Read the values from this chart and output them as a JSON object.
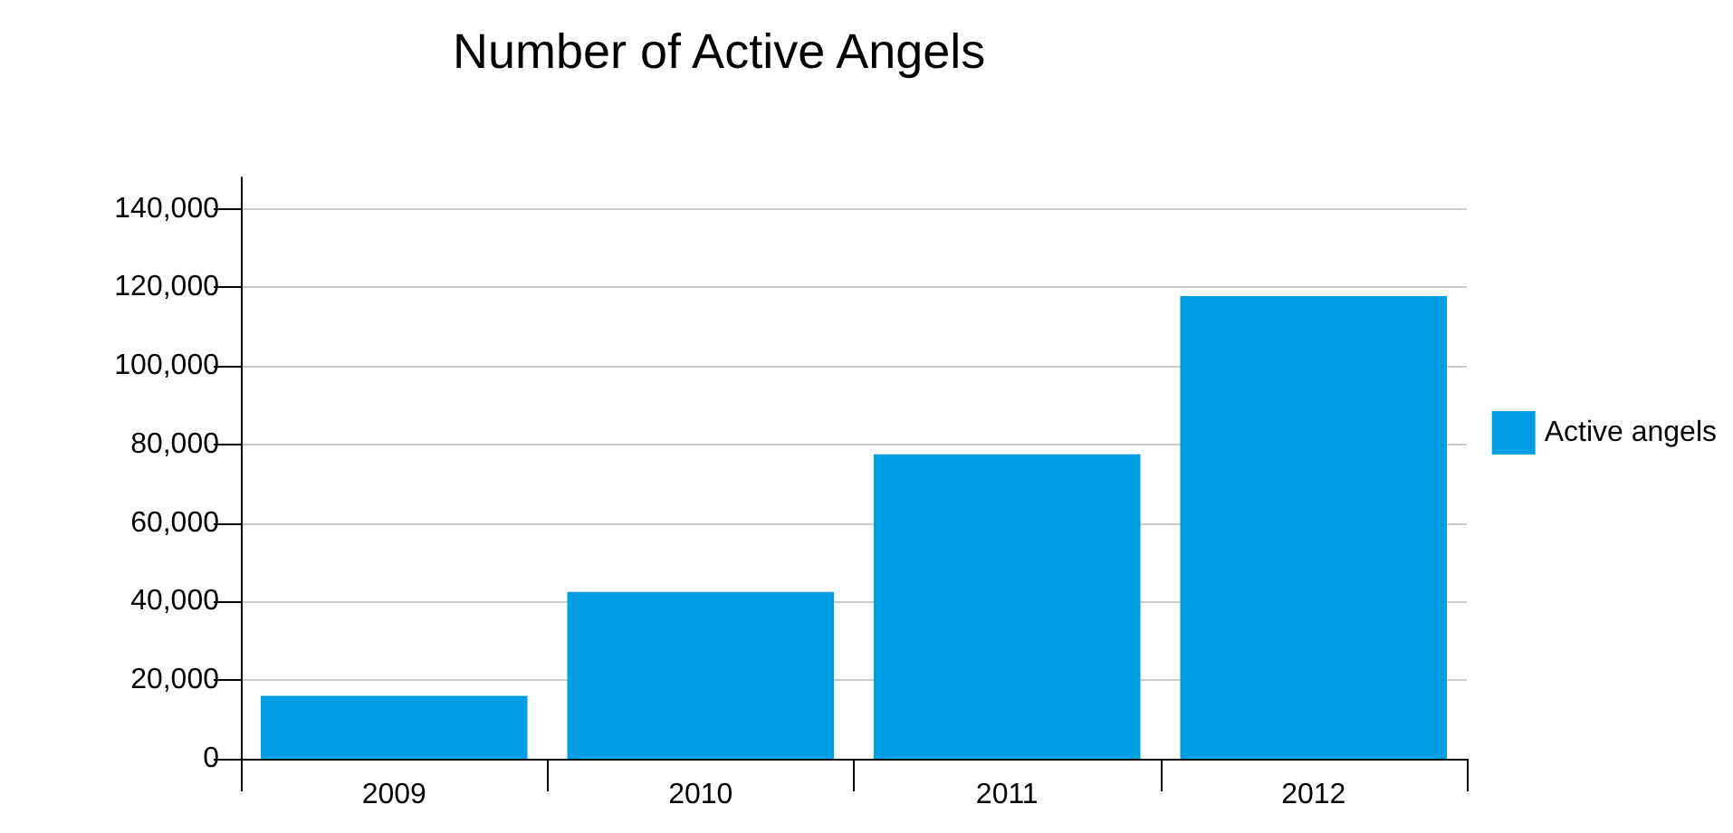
{
  "chart_data": {
    "type": "bar",
    "title": "Number of Active Angels",
    "categories": [
      "2009",
      "2010",
      "2011",
      "2012"
    ],
    "series": [
      {
        "name": "Active angels",
        "color": "#009fe3",
        "values": [
          16000,
          42500,
          77500,
          117800
        ]
      }
    ],
    "ylim": [
      0,
      148000
    ],
    "yticks": [
      0,
      {
        "value": 20000,
        "label": "20,000"
      },
      {
        "value": 40000,
        "label": "40,000"
      },
      {
        "value": 60000,
        "label": "60,000"
      },
      {
        "value": 80000,
        "label": "80,000"
      },
      {
        "value": 100000,
        "label": "100,000"
      },
      {
        "value": 120000,
        "label": "120,000"
      },
      {
        "value": 140000,
        "label": "140,000"
      }
    ],
    "grid": "y",
    "legend": "right"
  }
}
